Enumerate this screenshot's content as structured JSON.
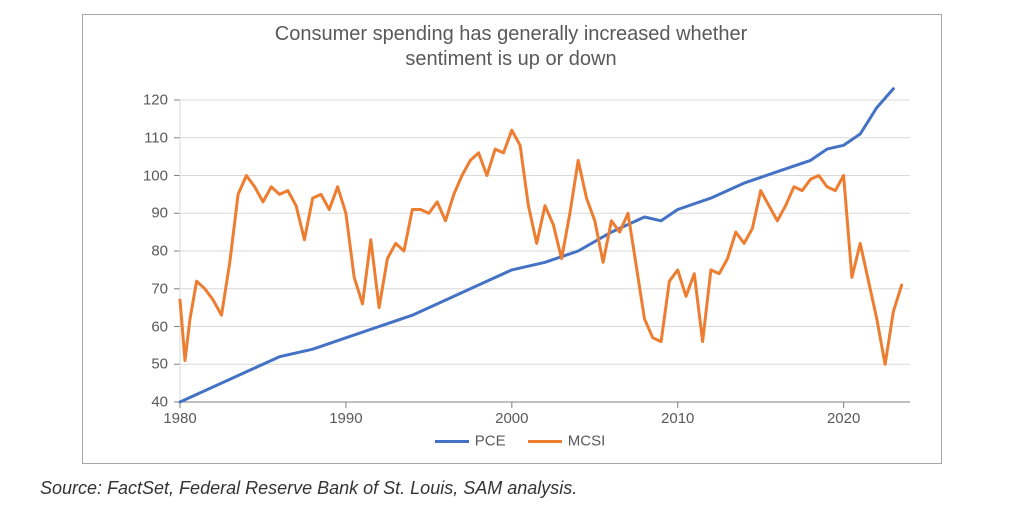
{
  "chart": {
    "type": "line",
    "title_line1": "Consumer spending has generally increased whether",
    "title_line2": "sentiment is up or down",
    "title_fontsize": 20,
    "title_color": "#595959",
    "border_color": "#a6a6a6",
    "background_color": "#ffffff",
    "grid_color": "#d9d9d9",
    "tick_color": "#808080",
    "label_color": "#595959",
    "label_fontsize": 15,
    "ylim": [
      40,
      120
    ],
    "ytick_step": 10,
    "xlim": [
      1980,
      2024
    ],
    "xticks": [
      1980,
      1990,
      2000,
      2010,
      2020
    ],
    "line_width": 3,
    "series": [
      {
        "name": "PCE",
        "color": "#4472c4",
        "x": [
          1980,
          1982,
          1984,
          1986,
          1988,
          1990,
          1992,
          1994,
          1996,
          1998,
          2000,
          2002,
          2004,
          2006,
          2008,
          2009,
          2010,
          2012,
          2014,
          2016,
          2018,
          2019,
          2020,
          2021,
          2022,
          2023
        ],
        "y": [
          40,
          44,
          48,
          52,
          54,
          57,
          60,
          63,
          67,
          71,
          75,
          77,
          80,
          85,
          89,
          88,
          91,
          94,
          98,
          101,
          104,
          107,
          108,
          111,
          118,
          123
        ]
      },
      {
        "name": "MCSI",
        "color": "#ed7d31",
        "x": [
          1980,
          1980.3,
          1980.6,
          1981,
          1981.5,
          1982,
          1982.5,
          1983,
          1983.5,
          1984,
          1984.5,
          1985,
          1985.5,
          1986,
          1986.5,
          1987,
          1987.5,
          1988,
          1988.5,
          1989,
          1989.5,
          1990,
          1990.5,
          1991,
          1991.5,
          1992,
          1992.5,
          1993,
          1993.5,
          1994,
          1994.5,
          1995,
          1995.5,
          1996,
          1996.5,
          1997,
          1997.5,
          1998,
          1998.5,
          1999,
          1999.5,
          2000,
          2000.5,
          2001,
          2001.5,
          2002,
          2002.5,
          2003,
          2003.5,
          2004,
          2004.5,
          2005,
          2005.5,
          2006,
          2006.5,
          2007,
          2007.5,
          2008,
          2008.5,
          2009,
          2009.5,
          2010,
          2010.5,
          2011,
          2011.5,
          2012,
          2012.5,
          2013,
          2013.5,
          2014,
          2014.5,
          2015,
          2015.5,
          2016,
          2016.5,
          2017,
          2017.5,
          2018,
          2018.5,
          2019,
          2019.5,
          2020,
          2020.5,
          2021,
          2021.5,
          2022,
          2022.5,
          2023,
          2023.5
        ],
        "y": [
          67,
          51,
          62,
          72,
          70,
          67,
          63,
          77,
          95,
          100,
          97,
          93,
          97,
          95,
          96,
          92,
          83,
          94,
          95,
          91,
          97,
          90,
          73,
          66,
          83,
          65,
          78,
          82,
          80,
          91,
          91,
          90,
          93,
          88,
          95,
          100,
          104,
          106,
          100,
          107,
          106,
          112,
          108,
          92,
          82,
          92,
          87,
          78,
          90,
          104,
          94,
          88,
          77,
          88,
          85,
          90,
          76,
          62,
          57,
          56,
          72,
          75,
          68,
          74,
          56,
          75,
          74,
          78,
          85,
          82,
          86,
          96,
          92,
          88,
          92,
          97,
          96,
          99,
          100,
          97,
          96,
          100,
          73,
          82,
          72,
          62,
          50,
          64,
          71
        ]
      }
    ],
    "legend": [
      {
        "label": "PCE",
        "color": "#4472c4"
      },
      {
        "label": "MCSI",
        "color": "#ed7d31"
      }
    ]
  },
  "source_text": "Source: FactSet, Federal Reserve Bank of St. Louis, SAM analysis.",
  "source_color": "#333333",
  "source_fontsize": 18
}
